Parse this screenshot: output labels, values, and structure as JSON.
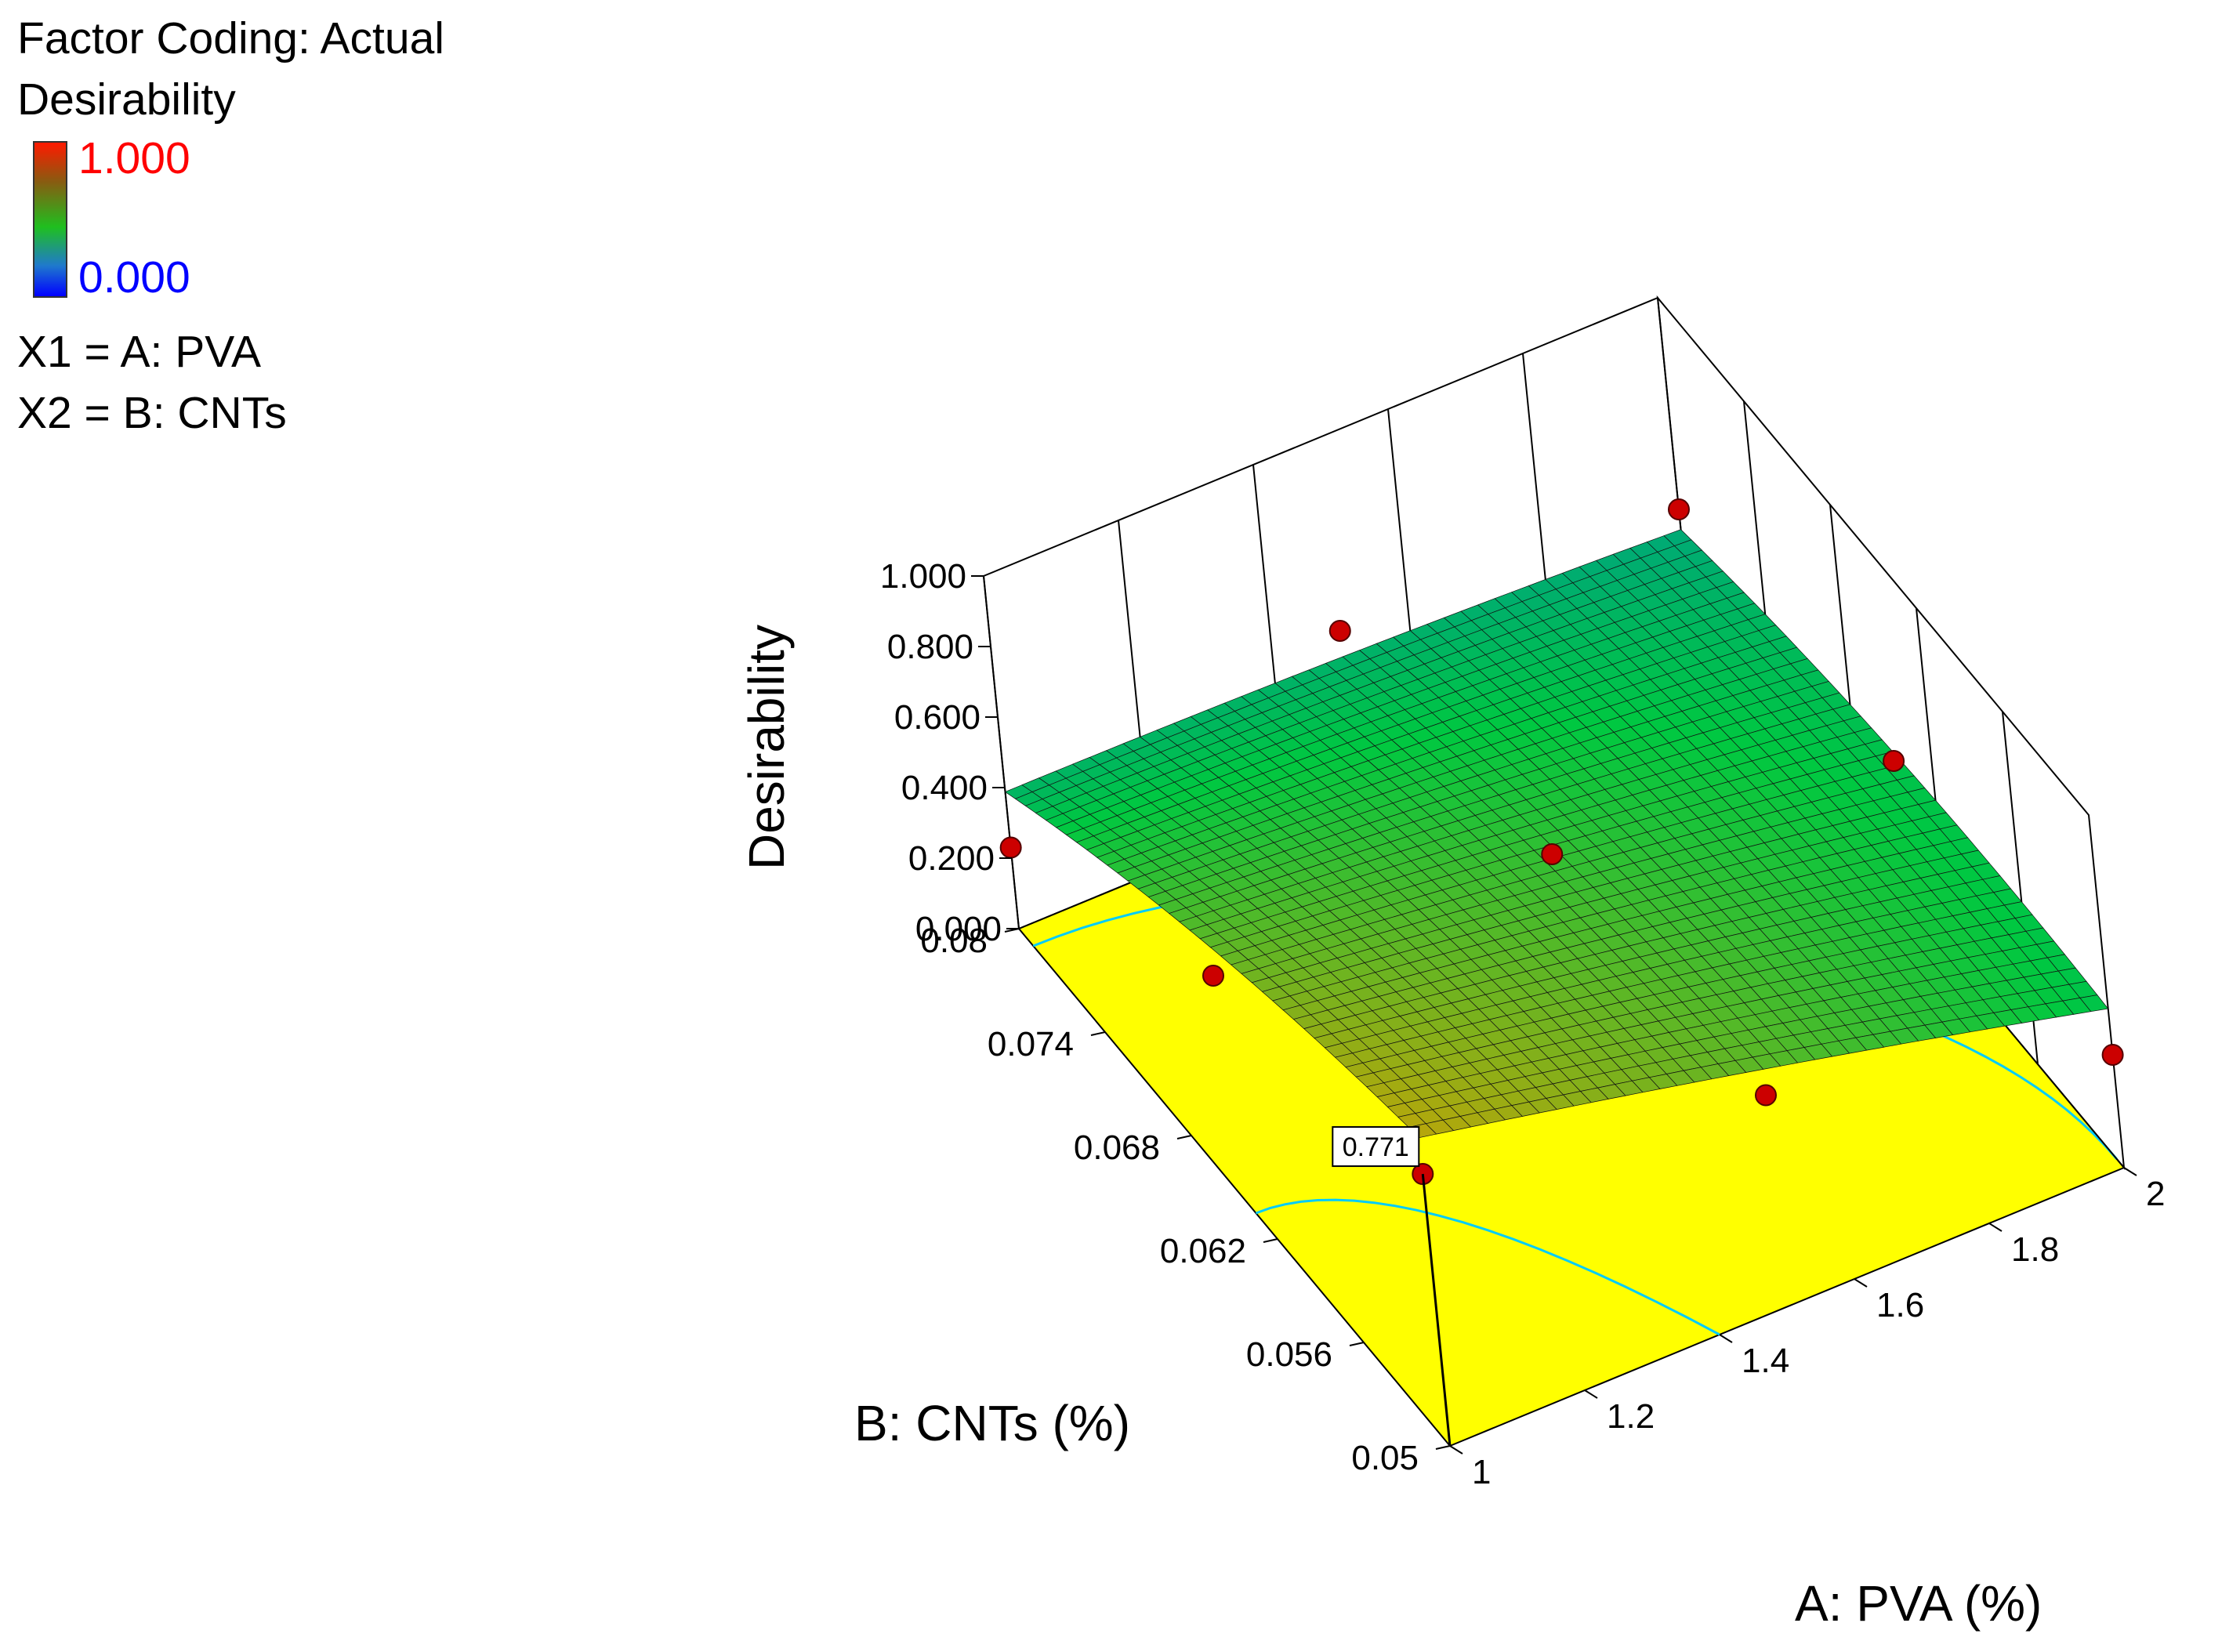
{
  "legend": {
    "factor_coding": "Factor Coding: Actual",
    "response_name": "Desirability",
    "scale_max": "1.000",
    "scale_min": "0.000",
    "x1_def": "X1 = A: PVA",
    "x2_def": "X2 = B: CNTs",
    "colors": {
      "max": "#ff0000",
      "min": "#0000ff"
    }
  },
  "chart_data": {
    "type": "surface",
    "title": "",
    "z_label": "Desirability",
    "a_label": "A: PVA (%)",
    "b_label": "B: CNTs (%)",
    "a_range": [
      1,
      2
    ],
    "b_range": [
      0.05,
      0.08
    ],
    "z_range": [
      0,
      1
    ],
    "a_ticks": [
      "1",
      "1.2",
      "1.4",
      "1.6",
      "1.8",
      "2"
    ],
    "b_ticks": [
      "0.05",
      "0.056",
      "0.062",
      "0.068",
      "0.074",
      "0.08"
    ],
    "z_ticks": [
      "0.000",
      "0.200",
      "0.400",
      "0.600",
      "0.800",
      "1.000"
    ],
    "floor_color": "#ffff00",
    "contour_color": "#00ccff",
    "point_color": "#cc0000",
    "design_points": [
      {
        "a": 1.0,
        "b": 0.05,
        "z": 0.771
      },
      {
        "a": 1.5,
        "b": 0.05,
        "z": 0.6
      },
      {
        "a": 2.0,
        "b": 0.05,
        "z": 0.32
      },
      {
        "a": 1.0,
        "b": 0.065,
        "z": 0.6
      },
      {
        "a": 1.5,
        "b": 0.065,
        "z": 0.55
      },
      {
        "a": 2.0,
        "b": 0.065,
        "z": 0.42
      },
      {
        "a": 1.0,
        "b": 0.08,
        "z": 0.23
      },
      {
        "a": 1.5,
        "b": 0.08,
        "z": 0.45
      },
      {
        "a": 2.0,
        "b": 0.08,
        "z": 0.4
      }
    ],
    "annotation": {
      "label": "0.771",
      "a": 1.0,
      "b": 0.05,
      "z": 0.771
    },
    "grid": true
  }
}
